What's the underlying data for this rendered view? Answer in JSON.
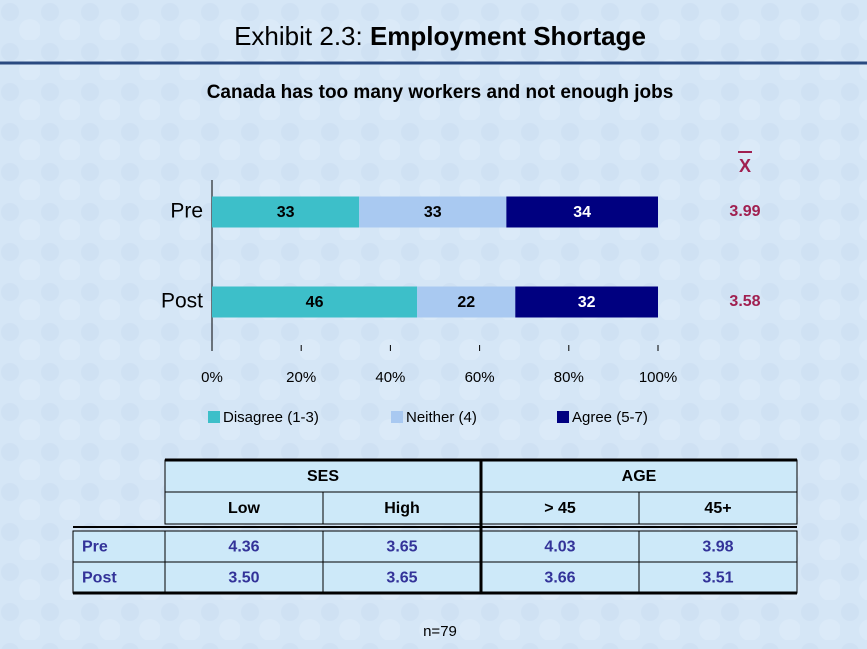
{
  "chart_data": {
    "type": "bar",
    "orientation": "horizontal",
    "stacked": true,
    "title_prefix": "Exhibit 2.3:",
    "title": "Employment Shortage",
    "subtitle": "Canada has too many workers and not enough jobs",
    "categories": [
      "Pre",
      "Post"
    ],
    "series": [
      {
        "name": "Disagree (1-3)",
        "color": "#3dbfc9",
        "values": [
          33,
          46
        ]
      },
      {
        "name": "Neither (4)",
        "color": "#a9c9f1",
        "values": [
          33,
          22
        ]
      },
      {
        "name": "Agree (5-7)",
        "color": "#000080",
        "values": [
          34,
          32
        ]
      }
    ],
    "mean_label": "X",
    "means": [
      3.99,
      3.58
    ],
    "means_color": "#a02050",
    "xlim": [
      0,
      100
    ],
    "xticks": [
      {
        "value": 0,
        "label": "0%"
      },
      {
        "value": 20,
        "label": "20%"
      },
      {
        "value": 40,
        "label": "40%"
      },
      {
        "value": 60,
        "label": "60%"
      },
      {
        "value": 80,
        "label": "80%"
      },
      {
        "value": 100,
        "label": "100%"
      }
    ],
    "legend": "bottom"
  },
  "table": {
    "groups": [
      "SES",
      "AGE"
    ],
    "columns": [
      "Low",
      "High",
      "> 45",
      "45+"
    ],
    "rows": [
      {
        "label": "Pre",
        "values": [
          "4.36",
          "3.65",
          "4.03",
          "3.98"
        ]
      },
      {
        "label": "Post",
        "values": [
          "3.50",
          "3.65",
          "3.66",
          "3.51"
        ]
      }
    ]
  },
  "footer": "n=79"
}
